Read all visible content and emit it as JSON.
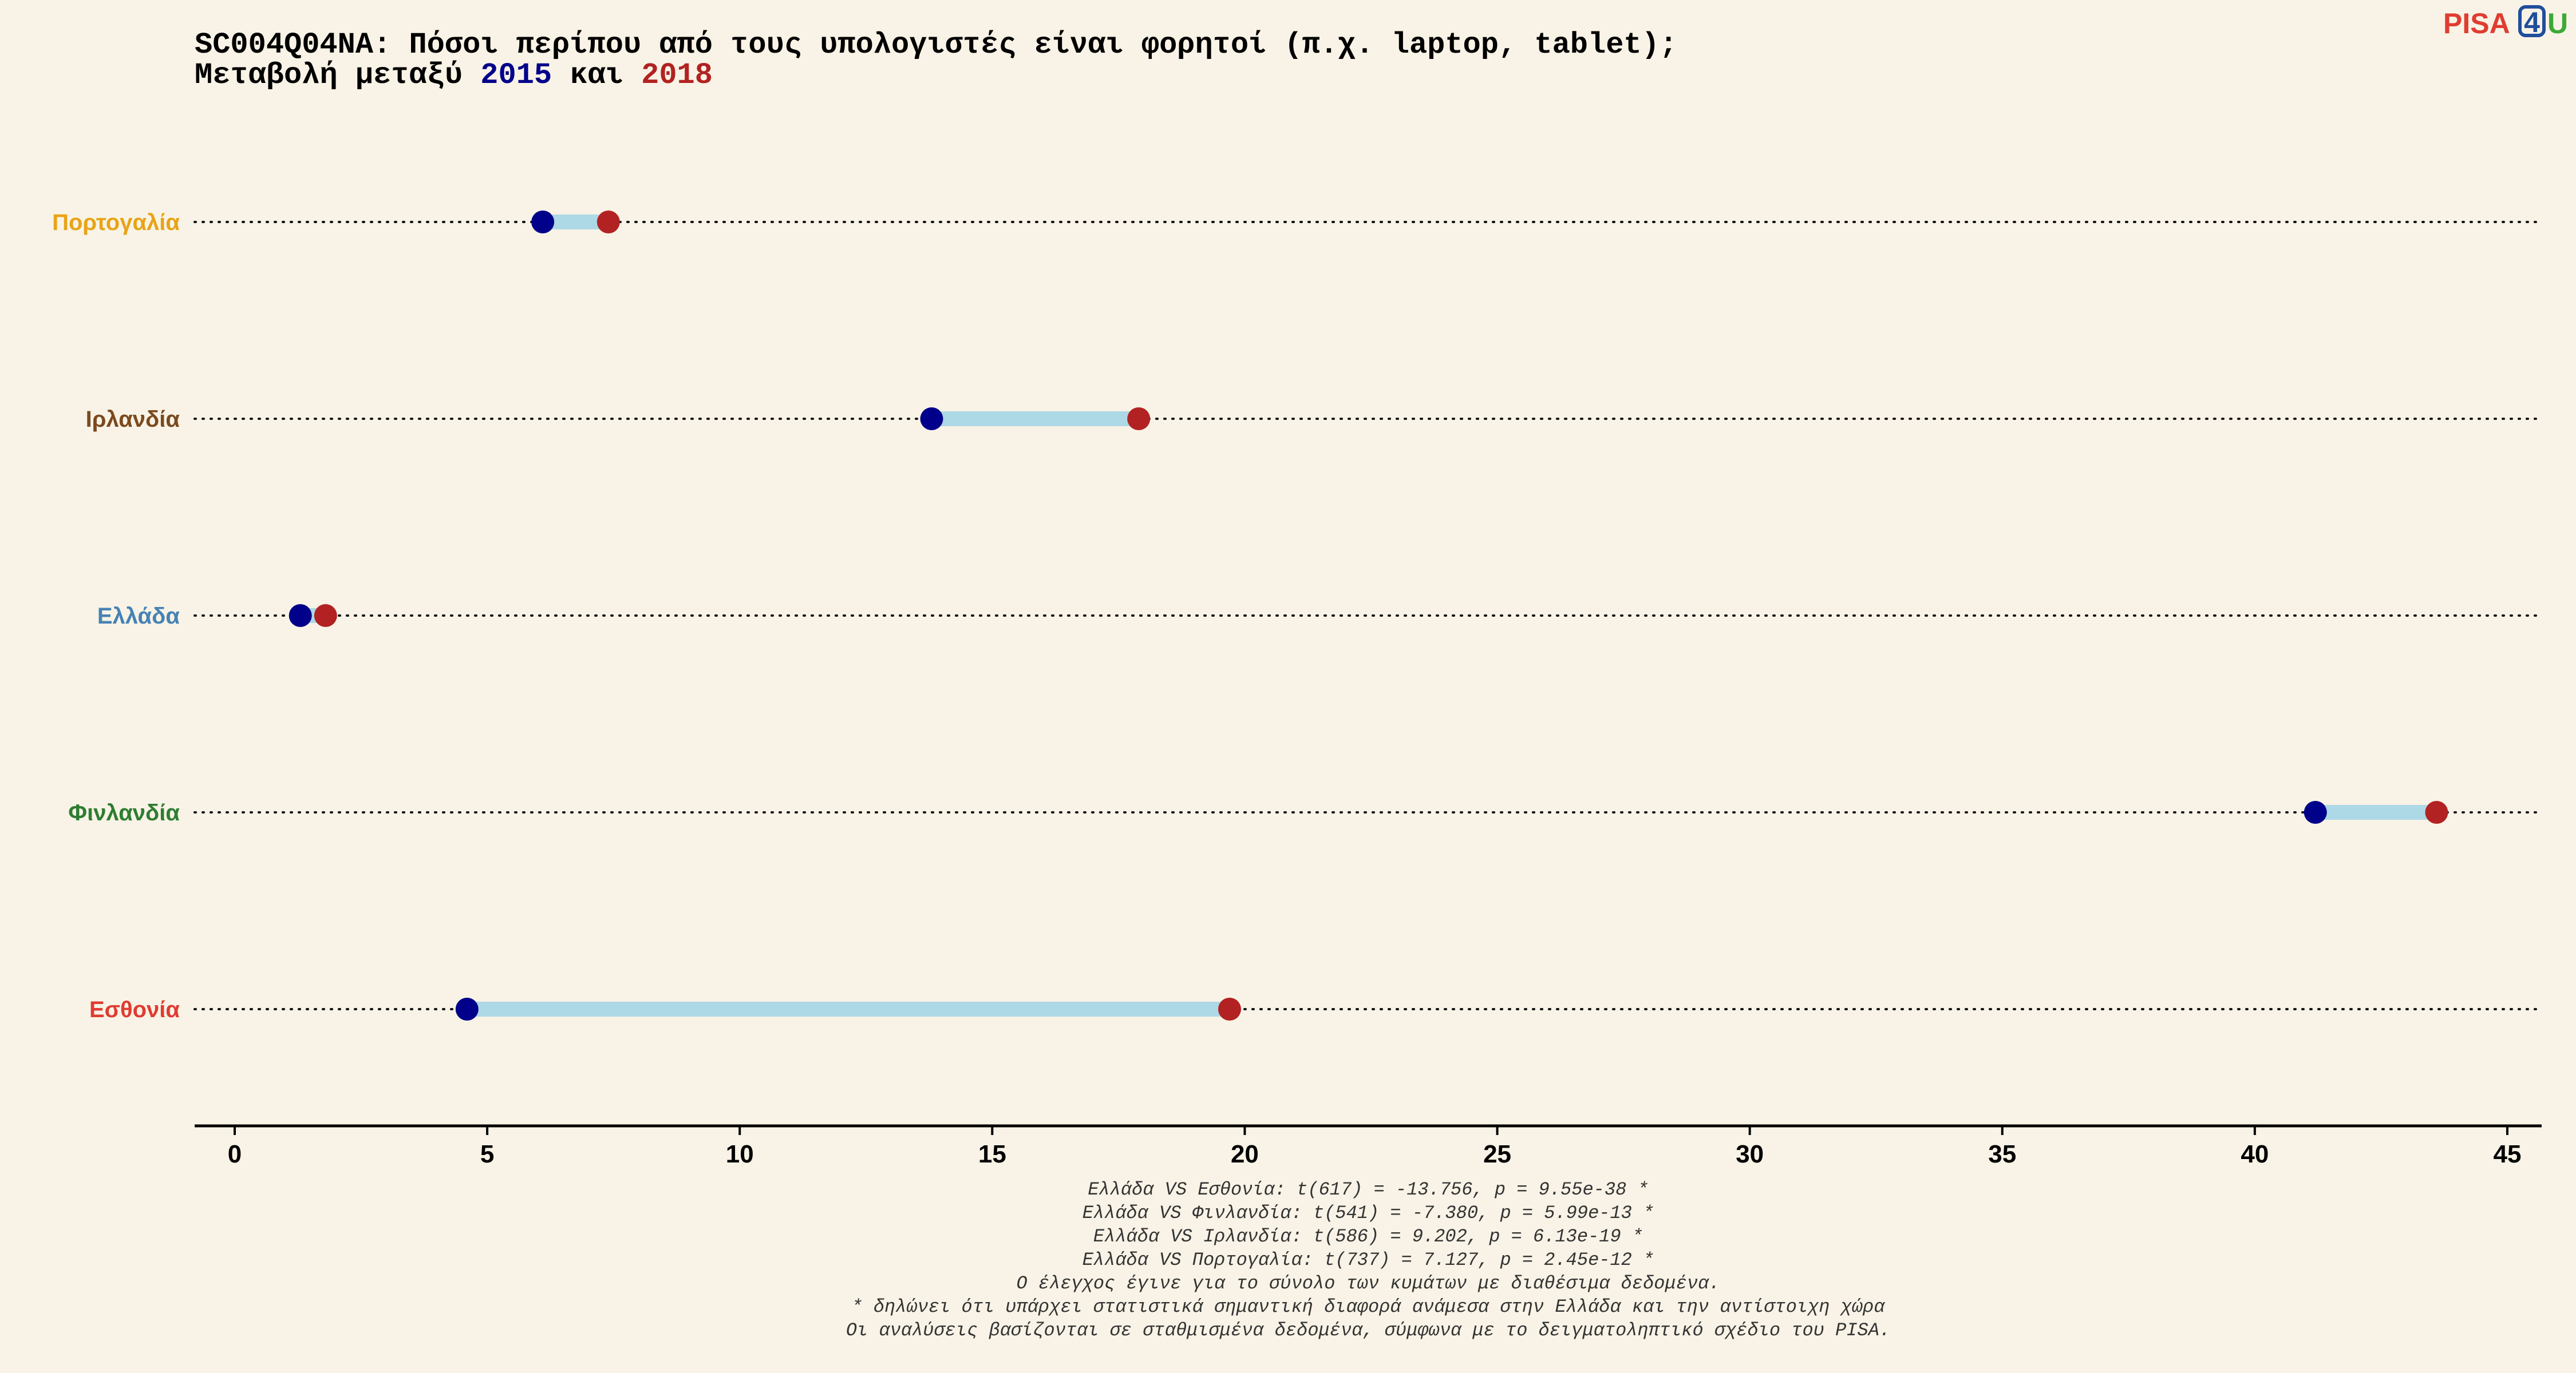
{
  "title": {
    "line1": "SC004Q04NA: Πόσοι περίπου από τους υπολογιστές είναι φορητοί (π.χ. laptop, tablet);",
    "line2_prefix": "Μεταβολή μεταξύ ",
    "year1": "2015",
    "line2_mid": " και ",
    "year2": "2018"
  },
  "logo": {
    "part1": "PISA",
    "part2": "4",
    "part3": "U"
  },
  "colors": {
    "year1": "#00008b",
    "year2": "#b22222",
    "connector": "#add8e6",
    "logo_red": "#e03c31",
    "logo_blue": "#1f4e9c",
    "logo_green": "#3aaa35"
  },
  "chart_data": {
    "type": "dumbbell",
    "xlim": [
      -0.8,
      45.6
    ],
    "x_ticks": [
      0,
      5,
      10,
      15,
      20,
      25,
      30,
      35,
      40,
      45
    ],
    "grid": false,
    "rows": [
      {
        "label": "Πορτογαλία",
        "color": "#e8a317",
        "v2015": 6.1,
        "v2018": 7.4
      },
      {
        "label": "Ιρλανδία",
        "color": "#7b4a1e",
        "v2015": 13.8,
        "v2018": 17.9
      },
      {
        "label": "Ελλάδα",
        "color": "#4682b4",
        "v2015": 1.3,
        "v2018": 1.8
      },
      {
        "label": "Φινλανδία",
        "color": "#2e7d32",
        "v2015": 41.2,
        "v2018": 43.6
      },
      {
        "label": "Εσθονία",
        "color": "#e03c31",
        "v2015": 4.6,
        "v2018": 19.7
      }
    ]
  },
  "footnotes": [
    "Ελλάδα VS Εσθονία: t(617) = -13.756, p = 9.55e-38 *",
    "Ελλάδα VS Φινλανδία: t(541) = -7.380, p = 5.99e-13 *",
    "Ελλάδα VS Ιρλανδία: t(586) = 9.202, p = 6.13e-19 *",
    "Ελλάδα VS Πορτογαλία: t(737) = 7.127, p = 2.45e-12 *",
    "Ο έλεγχος έγινε για το σύνολο των κυμάτων με διαθέσιμα δεδομένα.",
    "* δηλώνει ότι υπάρχει στατιστικά σημαντική διαφορά ανάμεσα στην Ελλάδα και την αντίστοιχη χώρα",
    "Οι αναλύσεις βασίζονται σε σταθμισμένα δεδομένα, σύμφωνα με το δειγματοληπτικό σχέδιο του PISA."
  ]
}
